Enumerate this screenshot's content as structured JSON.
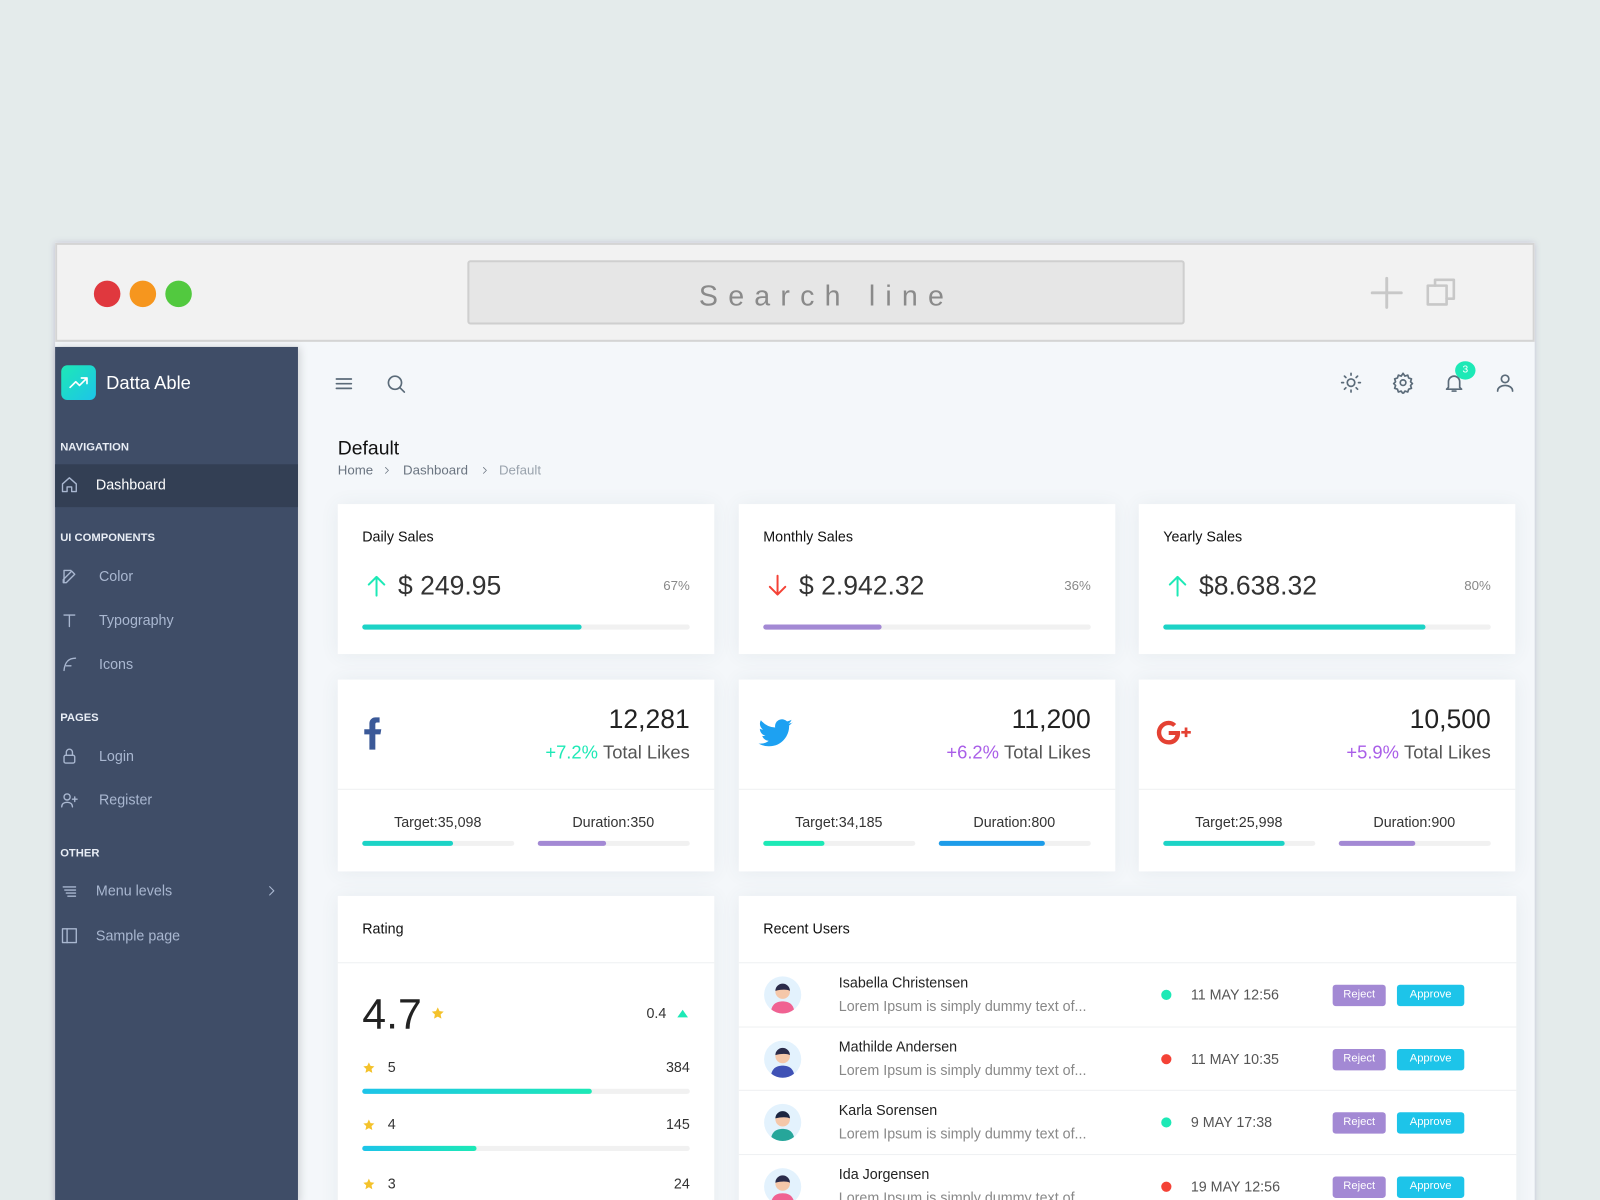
{
  "browser": {
    "search": "Search line"
  },
  "sidebar": {
    "brand": "Datta Able",
    "sections": [
      {
        "title": "NAVIGATION",
        "items": [
          "Dashboard"
        ]
      },
      {
        "title": "UI COMPONENTS",
        "items": [
          "Color",
          "Typography",
          "Icons"
        ]
      },
      {
        "title": "PAGES",
        "items": [
          "Login",
          "Register"
        ]
      },
      {
        "title": "OTHER",
        "items": [
          "Menu levels",
          "Sample page"
        ]
      }
    ]
  },
  "header": {
    "notifications": 3
  },
  "page": {
    "title": "Default",
    "breadcrumb": [
      "Home",
      "Dashboard",
      "Default"
    ]
  },
  "sales": [
    {
      "title": "Daily Sales",
      "amount": "$ 249.95",
      "trend": "up",
      "color": "#1cd3c6",
      "progress": {
        "value": 67,
        "label": "67%"
      }
    },
    {
      "title": "Monthly Sales",
      "amount": "$ 2.942.32",
      "trend": "down",
      "color": "#a389d4",
      "progress": {
        "value": 36,
        "label": "36%"
      }
    },
    {
      "title": "Yearly Sales",
      "amount": "$8.638.32",
      "trend": "up",
      "color": "#1cd3c6",
      "progress": {
        "value": 80,
        "label": "80%"
      }
    }
  ],
  "social": [
    {
      "count": "12,281",
      "change": "+7.2%",
      "change_color": "#1de9b6",
      "caption": "Total Likes",
      "target": "Target:35,098",
      "duration": "Duration:350"
    },
    {
      "count": "11,200",
      "change": "+6.2%",
      "change_color": "#a95ee8",
      "caption": "Total Likes",
      "target": "Target:34,185",
      "duration": "Duration:800"
    },
    {
      "count": "10,500",
      "change": "+5.9%",
      "change_color": "#a95ee8",
      "caption": "Total Likes",
      "target": "Target:25,998",
      "duration": "Duration:900"
    }
  ],
  "rating": {
    "title": "Rating",
    "score": "4.7",
    "change": "0.4",
    "rows": [
      {
        "stars": "5",
        "count": "384"
      },
      {
        "stars": "4",
        "count": "145"
      },
      {
        "stars": "3",
        "count": "24"
      }
    ]
  },
  "recent_users": {
    "title": "Recent Users",
    "reject": "Reject",
    "approve": "Approve",
    "rows": [
      {
        "name": "Isabella Christensen",
        "text": "Lorem Ipsum is simply dummy text of...",
        "time": "11 MAY 12:56",
        "status_color": "#1de9b6"
      },
      {
        "name": "Mathilde Andersen",
        "text": "Lorem Ipsum is simply dummy text of...",
        "time": "11 MAY 10:35",
        "status_color": "#f44236"
      },
      {
        "name": "Karla Sorensen",
        "text": "Lorem Ipsum is simply dummy text of...",
        "time": "9 MAY 17:38",
        "status_color": "#1de9b6"
      },
      {
        "name": "Ida Jorgensen",
        "text": "Lorem Ipsum is simply dummy text of...",
        "time": "19 MAY 12:56",
        "status_color": "#f44236"
      }
    ]
  }
}
